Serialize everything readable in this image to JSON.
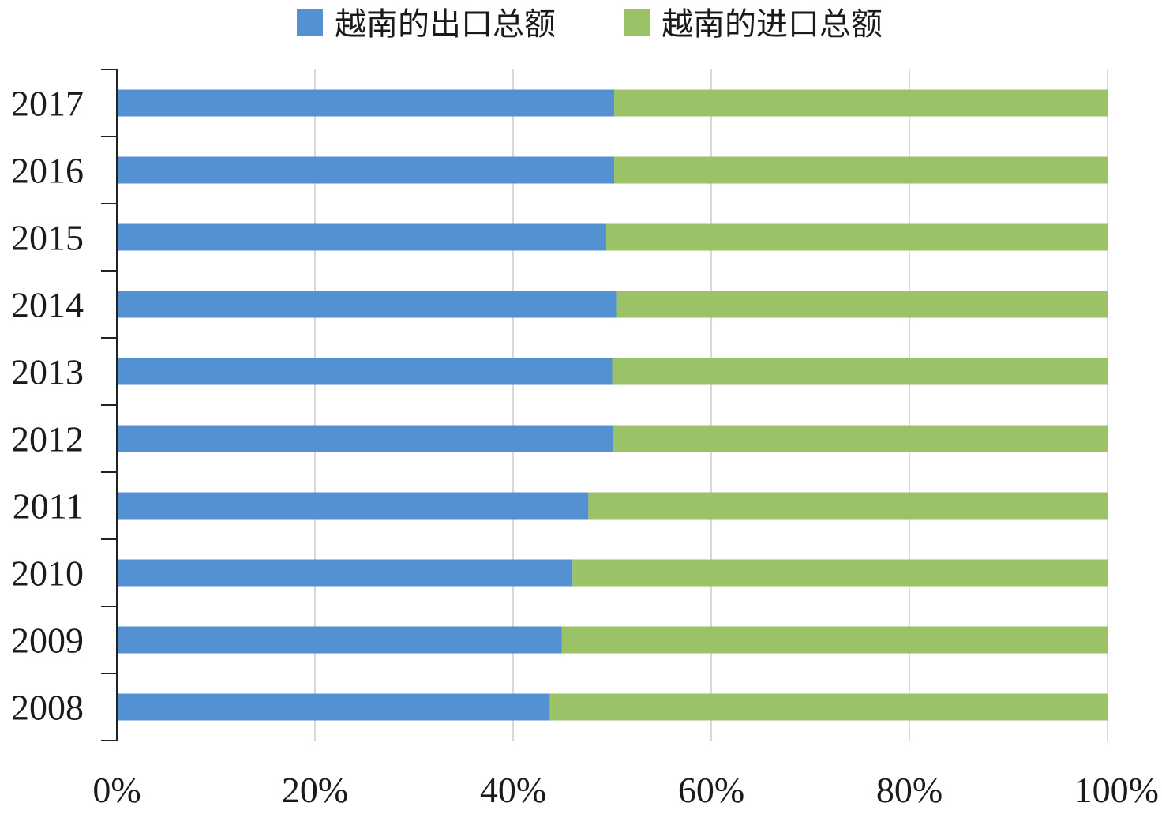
{
  "chart_data": {
    "type": "bar",
    "orientation": "horizontal",
    "stacked": "percent",
    "categories": [
      "2017",
      "2016",
      "2015",
      "2014",
      "2013",
      "2012",
      "2011",
      "2010",
      "2009",
      "2008"
    ],
    "series": [
      {
        "name": "越南的出口总额",
        "color": "#5491d3",
        "values": [
          50.2,
          50.2,
          49.4,
          50.4,
          50.0,
          50.1,
          47.6,
          46.0,
          44.9,
          43.7
        ]
      },
      {
        "name": "越南的进口总额",
        "color": "#9bc267",
        "values": [
          49.8,
          49.8,
          50.6,
          49.6,
          50.0,
          49.9,
          52.4,
          54.0,
          55.1,
          56.3
        ]
      }
    ],
    "x_ticks": [
      "0%",
      "20%",
      "40%",
      "60%",
      "80%",
      "100%"
    ],
    "xlim": [
      0,
      100
    ],
    "grid": "vertical",
    "legend_position": "top"
  }
}
